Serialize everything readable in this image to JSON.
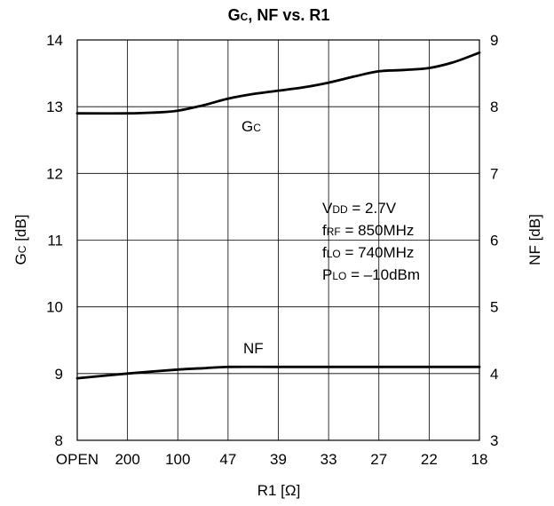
{
  "chart_data": {
    "type": "line",
    "title_parts": [
      "G",
      "C",
      ", NF vs. R1"
    ],
    "xlabel": "R1 [Ω]",
    "ylabel_left_parts": [
      "G",
      "C",
      " [dB]"
    ],
    "ylabel_right": "NF [dB]",
    "categories": [
      "OPEN",
      "200",
      "100",
      "47",
      "39",
      "33",
      "27",
      "22",
      "18"
    ],
    "y_left": {
      "lim": [
        8,
        14
      ],
      "ticks": [
        "8",
        "9",
        "10",
        "11",
        "12",
        "13",
        "14"
      ]
    },
    "y_right": {
      "lim": [
        3,
        9
      ],
      "ticks": [
        "3",
        "4",
        "5",
        "6",
        "7",
        "8",
        "9"
      ]
    },
    "grid": true,
    "series": [
      {
        "name": "Gc",
        "axis": "left",
        "x": [
          0,
          1,
          1.5,
          2,
          2.5,
          3,
          3.5,
          4,
          4.5,
          5,
          5.5,
          6,
          6.5,
          7,
          7.5,
          8
        ],
        "y": [
          12.9,
          12.9,
          12.91,
          12.94,
          13.02,
          13.12,
          13.19,
          13.24,
          13.29,
          13.36,
          13.45,
          13.53,
          13.55,
          13.58,
          13.67,
          13.81
        ]
      },
      {
        "name": "NF",
        "axis": "left",
        "x": [
          0,
          1,
          2,
          2.5,
          3,
          4,
          5,
          6,
          7,
          8
        ],
        "y": [
          8.93,
          9.0,
          9.06,
          9.08,
          9.1,
          9.1,
          9.1,
          9.1,
          9.1,
          9.1
        ]
      }
    ],
    "curve_labels": [
      {
        "parts": [
          "G",
          "C"
        ]
      },
      {
        "parts": [
          "NF",
          ""
        ]
      }
    ],
    "conditions": [
      {
        "main": "V",
        "sub": "DD",
        "rest": " = 2.7V"
      },
      {
        "main": "f",
        "sub": "RF",
        "rest": " = 850MHz"
      },
      {
        "main": "f",
        "sub": "LO",
        "rest": " = 740MHz"
      },
      {
        "main": "P",
        "sub": "LO",
        "rest": " = –10dBm"
      }
    ]
  }
}
